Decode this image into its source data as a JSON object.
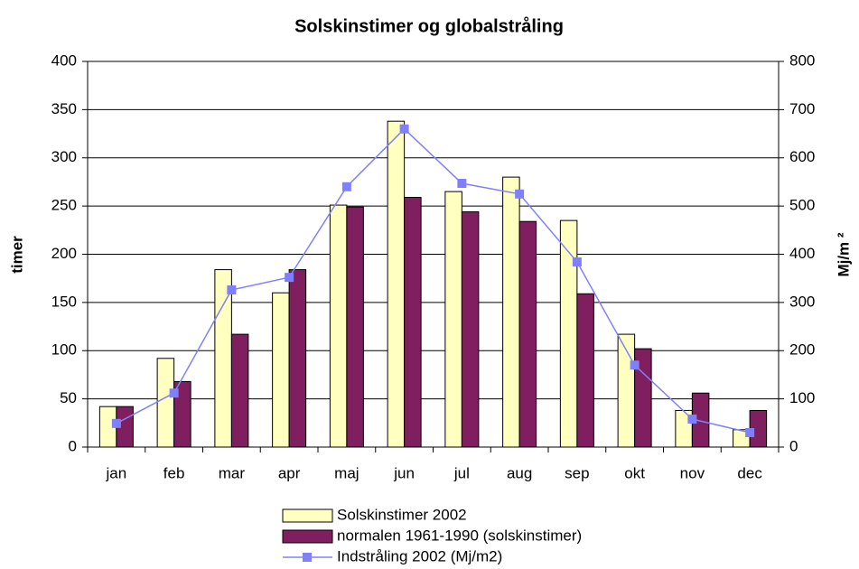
{
  "chart_data": {
    "type": "bar",
    "title": "Solskinstimer og globalstråling",
    "y_label": "timer",
    "y2_label": "Mj/m ²",
    "categories": [
      "jan",
      "feb",
      "mar",
      "apr",
      "maj",
      "jun",
      "jul",
      "aug",
      "sep",
      "okt",
      "nov",
      "dec"
    ],
    "series": [
      {
        "name": "Solskinstimer 2002",
        "type": "bar",
        "color": "#ffffc0",
        "values": [
          42,
          92,
          184,
          160,
          251,
          338,
          265,
          280,
          235,
          117,
          38,
          18
        ]
      },
      {
        "name": "normalen 1961-1990 (solskinstimer)",
        "type": "bar",
        "color": "#7f1f5f",
        "values": [
          42,
          68,
          117,
          184,
          249,
          259,
          244,
          234,
          159,
          102,
          56,
          38
        ]
      },
      {
        "name": "Indstråling 2002 (Mj/m2)",
        "type": "line",
        "axis": "y2",
        "color": "#8080ff",
        "values": [
          49,
          112,
          326,
          352,
          540,
          660,
          547,
          525,
          384,
          170,
          58,
          30
        ]
      }
    ],
    "ylim": [
      0,
      400
    ],
    "yticks": [
      0,
      50,
      100,
      150,
      200,
      250,
      300,
      350,
      400
    ],
    "y2lim": [
      0,
      800
    ],
    "y2ticks": [
      0,
      100,
      200,
      300,
      400,
      500,
      600,
      700,
      800
    ],
    "grid": true,
    "legend": "bottom"
  }
}
